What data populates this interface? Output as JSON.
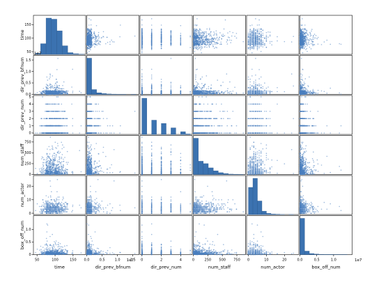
{
  "colors": {
    "hist_fill": "#3b72b0",
    "hist_edge": "#2c5a8f",
    "point": "#4a7fbf",
    "axis": "#000000",
    "background": "#ffffff"
  },
  "chart_data": {
    "type": "scatter",
    "variables": [
      "time",
      "dir_prev_bfnum",
      "dir_prev_num",
      "num_staff",
      "num_actor",
      "box_off_num"
    ],
    "diagonal": "hist",
    "multiplier_labels": [
      "1e7",
      "1e7",
      "1e7"
    ],
    "ranges": {
      "time": [
        40,
        185
      ],
      "dir_prev_bfnum": [
        0,
        17000000.0
      ],
      "dir_prev_num": [
        -0.2,
        5.2
      ],
      "num_staff": [
        0,
        900
      ],
      "num_actor": [
        -1,
        28
      ],
      "box_off_num": [
        0,
        15500000.0
      ]
    },
    "x_ticks": [
      {
        "values": [
          50,
          100,
          150
        ],
        "labels": [
          "50",
          "100",
          "150"
        ]
      },
      {
        "values": [
          0,
          5000000,
          10000000,
          15000000
        ],
        "labels": [
          "0.0",
          "0.5",
          "1.0",
          "1.5"
        ]
      },
      {
        "values": [
          0,
          2,
          4
        ],
        "labels": [
          "0",
          "2",
          "4"
        ]
      },
      {
        "values": [
          0,
          250,
          500,
          750
        ],
        "labels": [
          "0",
          "250",
          "500",
          "750"
        ]
      },
      {
        "values": [
          0,
          10,
          20
        ],
        "labels": [
          "0",
          "10",
          "20"
        ]
      },
      {
        "values": [
          0,
          5000000,
          10000000
        ],
        "labels": [
          "0.0",
          "0.5",
          "1.0"
        ]
      }
    ],
    "y_ticks": [
      {
        "values": [
          50,
          100,
          150
        ],
        "labels": [
          "50",
          "100",
          "150"
        ]
      },
      {
        "values": [
          0,
          5000000,
          10000000,
          15000000
        ],
        "labels": [
          "0.0",
          "0.5",
          "1.0",
          "1.5"
        ]
      },
      {
        "values": [
          0,
          1,
          2,
          3,
          4,
          5
        ],
        "labels": [
          "0",
          "1",
          "2",
          "3",
          "4",
          "5"
        ]
      },
      {
        "values": [
          0,
          250,
          500,
          750
        ],
        "labels": [
          "0",
          "250",
          "500",
          "750"
        ]
      },
      {
        "values": [
          0,
          10,
          20
        ],
        "labels": [
          "0",
          "10",
          "20"
        ]
      },
      {
        "values": [
          0,
          5000000,
          10000000
        ],
        "labels": [
          "0",
          "0.5",
          "1.0"
        ]
      }
    ],
    "histograms": [
      {
        "variable": "time",
        "bin_edges": [
          45,
          60,
          75,
          90,
          105,
          120,
          135,
          150,
          165,
          180
        ],
        "counts": [
          5,
          50,
          170,
          165,
          110,
          40,
          8,
          3,
          1
        ]
      },
      {
        "variable": "dir_prev_bfnum",
        "bin_edges": [
          0,
          1600000,
          3200000,
          4800000,
          6400000,
          8000000,
          9600000,
          11200000,
          12800000,
          14400000,
          16000000
        ],
        "counts": [
          450,
          60,
          20,
          10,
          5,
          3,
          1,
          1,
          0,
          1
        ]
      },
      {
        "variable": "dir_prev_num",
        "bin_edges": [
          0,
          0.5,
          1,
          1.5,
          2,
          2.5,
          3,
          3.5,
          4,
          4.5,
          5
        ],
        "counts": [
          330,
          0,
          130,
          0,
          100,
          0,
          60,
          0,
          25,
          5
        ]
      },
      {
        "variable": "num_staff",
        "bin_edges": [
          0,
          86,
          172,
          258,
          344,
          430,
          516,
          602,
          688,
          774,
          860
        ],
        "counts": [
          300,
          110,
          90,
          55,
          30,
          15,
          8,
          3,
          2,
          1
        ]
      },
      {
        "variable": "num_actor",
        "bin_edges": [
          0,
          2.5,
          5,
          7.5,
          10,
          12.5,
          15,
          17.5,
          20,
          22.5,
          25
        ],
        "counts": [
          240,
          320,
          120,
          30,
          10,
          5,
          3,
          1,
          0,
          1
        ]
      },
      {
        "variable": "box_off_num",
        "bin_edges": [
          0,
          1400000,
          2800000,
          4200000,
          5600000,
          7000000,
          8400000,
          9800000,
          11200000,
          12600000,
          14000000
        ],
        "counts": [
          520,
          50,
          15,
          8,
          4,
          3,
          2,
          1,
          1,
          1
        ]
      }
    ],
    "scatter_points": {
      "n": 600,
      "seed": 20240611,
      "generator": "synthetic-approximation"
    }
  }
}
